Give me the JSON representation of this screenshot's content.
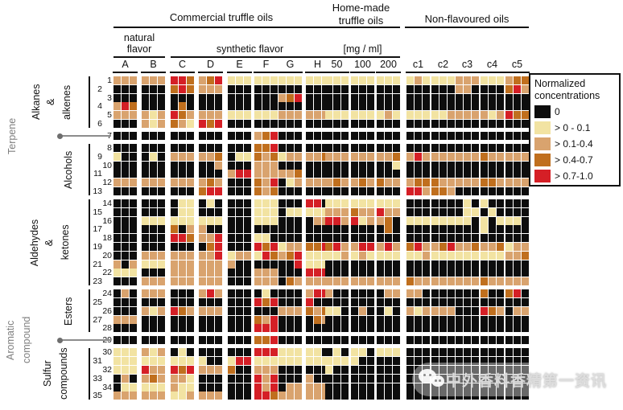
{
  "header": {
    "commercial": "Commercial truffle oils",
    "natural_line1": "natural",
    "natural_line2": "flavor",
    "synthetic": "synthetic flavor",
    "homemade_line1": "Home-made",
    "homemade_line2": "truffle oils",
    "mgml": "[mg / ml]",
    "nonflavoured": "Non-flavoured oils"
  },
  "legend": {
    "title_line1": "Normalized",
    "title_line2": "concentrations",
    "entries": [
      {
        "code": "K",
        "label": "0"
      },
      {
        "code": "Y",
        "label": "> 0 - 0.1"
      },
      {
        "code": "T",
        "label": "> 0.1-0.4"
      },
      {
        "code": "O",
        "label": "> 0.4-0.7"
      },
      {
        "code": "R",
        "label": "> 0.7-1.0"
      }
    ]
  },
  "colors": {
    "K": "#0d0d0d",
    "Y": "#f2e3a2",
    "T": "#d9a36e",
    "O": "#c06f1e",
    "R": "#d51f26"
  },
  "watermark": {
    "text": "中外香料香精第一资讯"
  },
  "chart_data": {
    "type": "heatmap",
    "columns": [
      "A",
      "B",
      "C",
      "D",
      "E",
      "F",
      "G",
      "H",
      "50",
      "100",
      "200",
      "c1",
      "c2",
      "c3",
      "c4",
      "c5"
    ],
    "column_groups": [
      {
        "label": "Commercial truffle oils",
        "sublabels": [
          "natural flavor",
          "synthetic flavor"
        ],
        "columns": [
          "A",
          "B",
          "C",
          "D",
          "E",
          "F",
          "G",
          "H"
        ]
      },
      {
        "label": "Home-made truffle oils",
        "sublabels": [
          "[mg / ml]"
        ],
        "columns": [
          "50",
          "100",
          "200"
        ]
      },
      {
        "label": "Non-flavoured oils",
        "sublabels": [],
        "columns": [
          "c1",
          "c2",
          "c3",
          "c4",
          "c5"
        ]
      }
    ],
    "replicates_per_column": 3,
    "value_scale": {
      "K": "0",
      "Y": ">0-0.1",
      "T": ">0.1-0.4",
      "O": ">0.4-0.7",
      "R": ">0.7-1.0"
    },
    "row_groups": [
      {
        "label": "Alkanes & alkenes",
        "label_lines": [
          "Alkanes",
          "&",
          "alkenes"
        ],
        "gray": false,
        "rows": [
          1,
          6
        ]
      },
      {
        "label": "Terpene",
        "label_lines": [
          "Terpene"
        ],
        "gray": true,
        "rows": [
          7,
          7
        ]
      },
      {
        "label": "Alcohols",
        "label_lines": [
          "Alcohols"
        ],
        "gray": false,
        "rows": [
          8,
          13
        ]
      },
      {
        "label": "Aldehydes & ketones",
        "label_lines": [
          "Aldehydes",
          "&",
          "ketones"
        ],
        "gray": false,
        "rows": [
          14,
          23
        ]
      },
      {
        "label": "Esters",
        "label_lines": [
          "Esters"
        ],
        "gray": false,
        "rows": [
          24,
          28
        ]
      },
      {
        "label": "Aromatic compound",
        "label_lines": [
          "Aromatic",
          "compound"
        ],
        "gray": true,
        "rows": [
          29,
          29
        ]
      },
      {
        "label": "Sulfur compounds",
        "label_lines": [
          "Sulfur",
          "compounds"
        ],
        "gray": false,
        "rows": [
          30,
          35
        ]
      }
    ],
    "rows": [
      {
        "num": 1,
        "cells": "TTT TTT RRO TOR YYY YYY YYY YYY YYY YYY YYY YTY YYY TTT YYY TOO"
      },
      {
        "num": 2,
        "cells": "KKK KKK ORO TTT KKK KKK KKK KKK KKK KKK KKK KKK KKK TTK KKK ORT"
      },
      {
        "num": 3,
        "cells": "KKK KKK KKK KKK KKK KKK TOR KKK KKK KKK KKK KKK KKK KKK KKK KKK"
      },
      {
        "num": 4,
        "cells": "TRO KKK KOK KKK KKK KKK KKK KKK KKK KKK KKK KKK KKK KKK KKK KKK"
      },
      {
        "num": 5,
        "cells": "TTT TYT ROT TTT YYY YYY TTT TTT YYY YYY YTY YYY YYT TTT TYT ROO"
      },
      {
        "num": 6,
        "cells": "KKK TYT OTY ROR KKK KKK KKK KKK KKK KKK KKK KKK KKK KKK KKK KKK"
      },
      {
        "num": 7,
        "cells": "KKK KKK KKK KKK KKK TOR KKK KKK KKK KKK KKK KKK KKK KKK KKK KKK"
      },
      {
        "num": 8,
        "cells": "KKK KKK KKK KKK KKK OOR KKK KKK KKK KKK KKK KKK KKK KKK KKK KKK"
      },
      {
        "num": 9,
        "cells": "YKK KYK TTT TTO KYY OTO YTT TTO TTT TTT TTO TRT TTT TTT OTT TTT"
      },
      {
        "num": 10,
        "cells": "KKK KKK KKK KKT KKK TTT KKK KKK KKK KKK KKY KKK KKK KKK KKK KKK"
      },
      {
        "num": 11,
        "cells": "KKK KKK KKK KKK TRR TTT TTO KKK KKK KKK KKK KKK KKK KKK KKK KKK"
      },
      {
        "num": 12,
        "cells": "TTT TTT TTT TOT KKK OTR KYT TTT TOT TOT OTT TOO OTT TTT OOT TTT"
      },
      {
        "num": 13,
        "cells": "KKK KKK KKK ORR KKK OTO KKK KKK KKK KKK KKK RRT OOT KKK KKK KKK"
      },
      {
        "num": 14,
        "cells": "KKK KKK KYY KYK KKK YYY KKK RRK YYY YYY YYY KKK KKK KYK YKK KKK"
      },
      {
        "num": 15,
        "cells": "KKK KKK KYY KKK KKK YYY KYY YYY TTT OTT RTT KKK KKK KYY KYK KKK"
      },
      {
        "num": 16,
        "cells": "KKK YYY YYY YYY KKK YYY KKK KTT RRT RYT TOK YYY YYY YYK YKY YYK"
      },
      {
        "num": 17,
        "cells": "KKK KKK OKT TKK KKK KKK KKK KKK KKK KKK KOK KKK KKK KKK YKK KKK"
      },
      {
        "num": 18,
        "cells": "KKK KKK RRO TTR KKK YYK KKK KKK KKK KKK KKK KKK KKK KKK KKK KKK"
      },
      {
        "num": 19,
        "cells": "KKK KKK KKK KOR KKK ROR YTT OOR ORT TRR TRT ORT TOR TTO TTO YTT"
      },
      {
        "num": 20,
        "cells": "KKK TTT TTT TTR YTT YRO TOR YYY YYT YTY YYY YYT YYY YYY YYY TTO"
      },
      {
        "num": 21,
        "cells": "TKT YYY TTT TTT TKK KKK KKR YYY KKK KKK KKK KKK KKK KKK KKK KKK"
      },
      {
        "num": 22,
        "cells": "YYY KKK TTT TTT KKK TTT KKK RRR KKK KKK KKK KKK KKK KKK KKK KKK"
      },
      {
        "num": 23,
        "cells": "KKK TTT TTT TTT KKK TTT KOT TTT TTT TTT TTT OTT TTT TTT OTT TTT"
      },
      {
        "num": 24,
        "cells": "KTK TTT KKK TRT KKK KYK KKK TRR TKK KKK KTT TTK KKK KKK OKK ORK"
      },
      {
        "num": 25,
        "cells": "KKK KKK KKK KKK KKK ROR KKK RKK KKK KKK KKK KKK KKK KKK KKK KKK"
      },
      {
        "num": 26,
        "cells": "KKK TYT ROT TTT KKK KKK TTT OTO YYK KTK KYK TYT TTT KKK ROT KTT"
      },
      {
        "num": 27,
        "cells": "TTT KKK KKK KKK KKK OTR KKK KOT KKK KKK KKK KKK KKK KKK KKK KKK"
      },
      {
        "num": 28,
        "cells": "KKK KKK KKK KKK KKK RRR KKK KKK KKK KKK KKK KKK KKK KKK KKK KKK"
      },
      {
        "num": 29,
        "cells": "KKK KKK KKK KKK KKK OOR KKK KKK KKK KKK KKK KKK KKK KKK KKK KKK"
      },
      {
        "num": 30,
        "cells": "YYY TYT KYK KKK KKK RRR YYY YYK KYK YYK YYY KKK KKK KKK KKK KKK"
      },
      {
        "num": 31,
        "cells": "YYY YYY YYY YKK YRR YYY YYY YYY YYY YKK KKK KKK KKK KKK KKK KKK"
      },
      {
        "num": 32,
        "cells": "YYY RTT ROR TTT OKK TTT KKK KKK YKK KKK KKK KKK KKK KKK KKK KKK"
      },
      {
        "num": 33,
        "cells": "KTK TOT TTY KKK KKK RTR KKK TKK KKK KKK KKK KKK KKK KKK KKK KKK"
      },
      {
        "num": 34,
        "cells": "KYY YYY TYY KKK KKK RTR KTT TTT KKK KKK KKK KKK KKK KKK KKK KKK"
      },
      {
        "num": 35,
        "cells": "TTT TTT YYT TTT KKK RRO TTT TTT KKK KKK KKK KKK KKK KKK KKK KKK"
      }
    ]
  }
}
